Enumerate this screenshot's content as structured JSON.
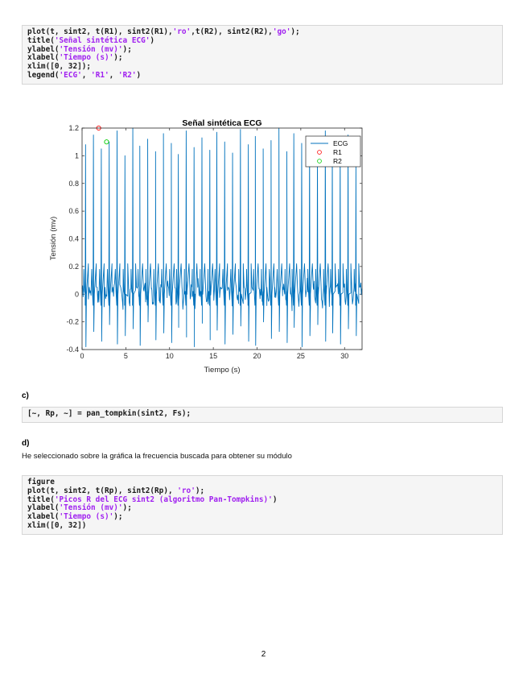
{
  "top_code": {
    "lines": [
      [
        {
          "t": "plot(t, sint2, t(R1), sint2(R1),"
        },
        {
          "t": "'ro'",
          "s": 1
        },
        {
          "t": ",t(R2), sint2(R2),"
        },
        {
          "t": "'go'",
          "s": 1
        },
        {
          "t": ");"
        }
      ],
      [
        {
          "t": "title("
        },
        {
          "t": "'Señal sintética ECG'",
          "s": 1
        },
        {
          "t": ")"
        }
      ],
      [
        {
          "t": "ylabel("
        },
        {
          "t": "'Tensión (mv)'",
          "s": 1
        },
        {
          "t": ");"
        }
      ],
      [
        {
          "t": "xlabel("
        },
        {
          "t": "'Tiempo (s)'",
          "s": 1
        },
        {
          "t": ");"
        }
      ],
      [
        {
          "t": "xlim([0, 32]);"
        }
      ],
      [
        {
          "t": "legend("
        },
        {
          "t": "'ECG'",
          "s": 1
        },
        {
          "t": ", "
        },
        {
          "t": "'R1'",
          "s": 1
        },
        {
          "t": ", "
        },
        {
          "t": "'R2'",
          "s": 1
        },
        {
          "t": ")"
        }
      ]
    ]
  },
  "chart_data": {
    "type": "line",
    "title": "Señal sintética ECG",
    "xlabel": "Tiempo (s)",
    "ylabel": "Tensión (mv)",
    "xlim": [
      0,
      32
    ],
    "ylim": [
      -0.4,
      1.2
    ],
    "xticks": [
      0,
      5,
      10,
      15,
      20,
      25,
      30
    ],
    "yticks": [
      -0.4,
      -0.2,
      0,
      0.2,
      0.4,
      0.6,
      0.8,
      1,
      1.2
    ],
    "legend_position": "top-right",
    "series": [
      {
        "name": "ECG",
        "style": "line",
        "color": "#0072bd",
        "beat_times": [
          0.4,
          1.3,
          2.2,
          3.1,
          4.0,
          4.9,
          5.8,
          6.6,
          7.5,
          8.4,
          9.3,
          10.2,
          11.0,
          11.9,
          12.8,
          13.7,
          14.6,
          15.4,
          16.3,
          17.2,
          18.1,
          19.0,
          19.8,
          20.7,
          21.6,
          22.5,
          23.4,
          24.2,
          25.1,
          26.0,
          26.9,
          27.8,
          28.6,
          29.5,
          30.4,
          31.3
        ],
        "r_peaks": [
          1.08,
          1.15,
          1.05,
          1.1,
          1.18,
          1.0,
          1.2,
          1.07,
          1.12,
          1.03,
          1.16,
          1.09,
          1.01,
          1.18,
          1.06,
          1.13,
          1.04,
          1.17,
          1.1,
          1.02,
          1.19,
          1.08,
          1.14,
          1.05,
          1.11,
          1.2,
          1.03,
          1.16,
          1.09,
          1.13,
          1.01,
          1.18,
          1.07,
          1.12,
          1.15,
          0.95
        ],
        "s_troughs": [
          -0.38,
          -0.27,
          -0.34,
          -0.22,
          -0.36,
          -0.3,
          -0.25,
          -0.37,
          -0.2,
          -0.33,
          -0.28,
          -0.35,
          -0.24,
          -0.31,
          -0.38,
          -0.21,
          -0.33,
          -0.26,
          -0.36,
          -0.29,
          -0.23,
          -0.34,
          -0.37,
          -0.2,
          -0.32,
          -0.27,
          -0.35,
          -0.24,
          -0.38,
          -0.3,
          -0.22,
          -0.34,
          -0.28,
          -0.36,
          -0.25,
          -0.3
        ]
      },
      {
        "name": "R1",
        "style": "marker-circle",
        "color": "#ff0000",
        "x": [
          1.9
        ],
        "y": [
          1.2
        ]
      },
      {
        "name": "R2",
        "style": "marker-circle",
        "color": "#00cc00",
        "x": [
          2.8
        ],
        "y": [
          1.1
        ]
      }
    ]
  },
  "section_c": {
    "label": "c)",
    "code_lines": [
      [
        {
          "t": "[~, Rp, ~] = pan_tompkin(sint2, Fs);"
        }
      ]
    ]
  },
  "section_d": {
    "label": "d)",
    "text": "He seleccionado sobre la gráfica la frecuencia buscada para obtener su módulo",
    "code_lines": [
      [
        {
          "t": "figure"
        }
      ],
      [
        {
          "t": "plot(t, sint2, t(Rp), sint2(Rp), "
        },
        {
          "t": "'ro'",
          "s": 1
        },
        {
          "t": ");"
        }
      ],
      [
        {
          "t": "title("
        },
        {
          "t": "'Picos R del ECG sint2 (algoritmo Pan-Tompkins)'",
          "s": 1
        },
        {
          "t": ")"
        }
      ],
      [
        {
          "t": "ylabel("
        },
        {
          "t": "'Tensión (mv)'",
          "s": 1
        },
        {
          "t": ");"
        }
      ],
      [
        {
          "t": "xlabel("
        },
        {
          "t": "'Tiempo (s)'",
          "s": 1
        },
        {
          "t": ");"
        }
      ],
      [
        {
          "t": "xlim([0, 32])"
        }
      ]
    ]
  },
  "page_number": "2"
}
